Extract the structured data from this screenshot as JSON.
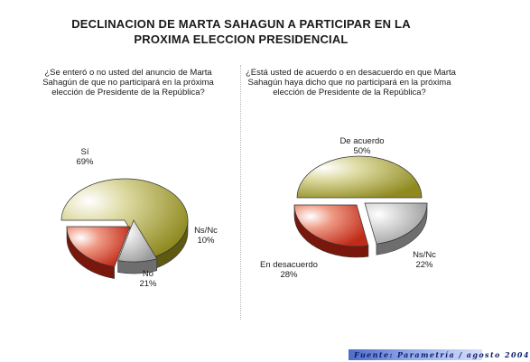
{
  "title_line1": "DECLINACION DE MARTA SAHAGUN A PARTICIPAR EN LA",
  "title_line2": "PROXIMA ELECCION PRESIDENCIAL",
  "source": "Fuente: Parametría / agosto 2004",
  "colors": {
    "olive": "#a8a235",
    "red": "#c8321f",
    "gray": "#a9a9a9"
  },
  "chart_data": [
    {
      "type": "pie",
      "title_lines": [
        "¿Se enteró o no usted del anuncio de Marta",
        "Sahagún de que no participará en la próxima",
        "elección de Presidente de la República?"
      ],
      "categories": [
        "Sí",
        "Ns/Nc",
        "No"
      ],
      "values": [
        69,
        10,
        21
      ],
      "value_labels": [
        "69%",
        "10%",
        "21%"
      ],
      "colors": [
        "olive",
        "gray",
        "red"
      ]
    },
    {
      "type": "pie",
      "title_lines": [
        "¿Está usted de acuerdo o en desacuerdo en que Marta",
        "Sahagún haya dicho que no participará en la próxima",
        "elección de Presidente de la República?"
      ],
      "categories": [
        "De acuerdo",
        "Ns/Nc",
        "En desacuerdo"
      ],
      "values": [
        50,
        22,
        28
      ],
      "value_labels": [
        "50%",
        "22%",
        "28%"
      ],
      "colors": [
        "olive",
        "gray",
        "red"
      ]
    }
  ]
}
